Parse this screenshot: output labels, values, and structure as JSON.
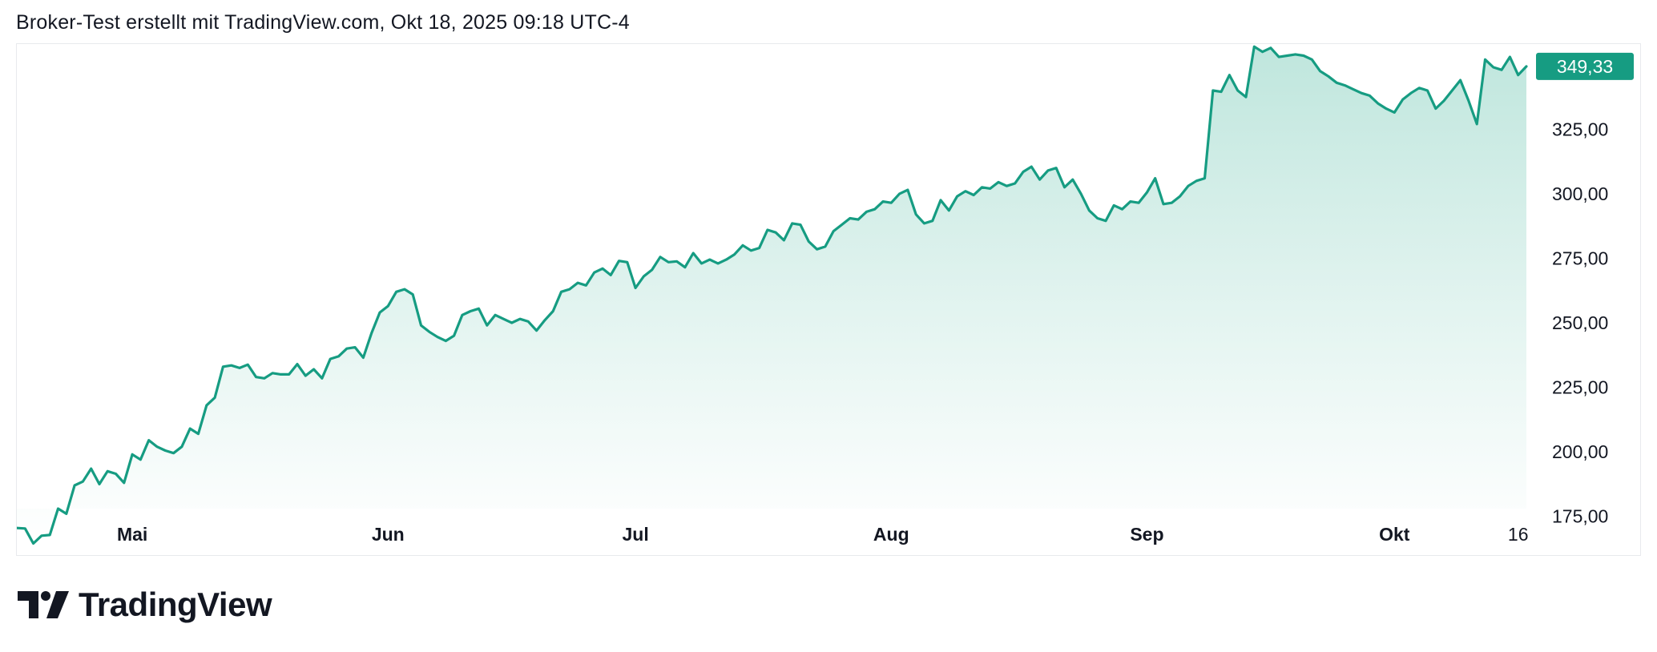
{
  "header": {
    "caption": "Broker-Test erstellt mit TradingView.com, Okt 18, 2025 09:18 UTC-4"
  },
  "brand": {
    "logo_text": "TradingView",
    "logo_icon": "tradingview-logo-icon"
  },
  "colors": {
    "line": "#169c82",
    "fill_top": "#bfe6dd",
    "fill_bottom": "#ffffff",
    "badge_bg": "#169c82",
    "badge_text": "#ffffff",
    "axis_text": "#131722"
  },
  "chart_data": {
    "type": "area",
    "x_range": [
      "2025-04-17",
      "2025-10-17"
    ],
    "ylim": [
      160,
      358
    ],
    "y_ticks": [
      {
        "value": 175,
        "label": "175,00"
      },
      {
        "value": 200,
        "label": "200,00"
      },
      {
        "value": 225,
        "label": "225,00"
      },
      {
        "value": 250,
        "label": "250,00"
      },
      {
        "value": 275,
        "label": "275,00"
      },
      {
        "value": 300,
        "label": "300,00"
      },
      {
        "value": 325,
        "label": "325,00"
      }
    ],
    "x_ticks": [
      {
        "date": "2025-05-01",
        "label": "Mai"
      },
      {
        "date": "2025-06-01",
        "label": "Jun"
      },
      {
        "date": "2025-07-01",
        "label": "Jul"
      },
      {
        "date": "2025-08-01",
        "label": "Aug"
      },
      {
        "date": "2025-09-01",
        "label": "Sep"
      },
      {
        "date": "2025-10-01",
        "label": "Okt"
      },
      {
        "date": "2025-10-16",
        "label": "16"
      }
    ],
    "last_price": {
      "value": 349.33,
      "label": "349,33"
    },
    "series": [
      {
        "points": [
          [
            "2025-04-17",
            170.5
          ],
          [
            "2025-04-18",
            170.3
          ],
          [
            "2025-04-19",
            164.5
          ],
          [
            "2025-04-20",
            167.5
          ],
          [
            "2025-04-21",
            167.8
          ],
          [
            "2025-04-22",
            178.0
          ],
          [
            "2025-04-23",
            176.0
          ],
          [
            "2025-04-24",
            187.0
          ],
          [
            "2025-04-25",
            188.5
          ],
          [
            "2025-04-26",
            193.5
          ],
          [
            "2025-04-27",
            187.5
          ],
          [
            "2025-04-28",
            192.5
          ],
          [
            "2025-04-29",
            191.5
          ],
          [
            "2025-04-30",
            188.0
          ],
          [
            "2025-05-01",
            199.0
          ],
          [
            "2025-05-02",
            197.0
          ],
          [
            "2025-05-03",
            204.5
          ],
          [
            "2025-05-04",
            202.0
          ],
          [
            "2025-05-05",
            200.5
          ],
          [
            "2025-05-06",
            199.5
          ],
          [
            "2025-05-07",
            202.0
          ],
          [
            "2025-05-08",
            209.0
          ],
          [
            "2025-05-09",
            207.0
          ],
          [
            "2025-05-10",
            218.0
          ],
          [
            "2025-05-11",
            221.0
          ],
          [
            "2025-05-12",
            233.0
          ],
          [
            "2025-05-13",
            233.5
          ],
          [
            "2025-05-14",
            232.5
          ],
          [
            "2025-05-15",
            233.8
          ],
          [
            "2025-05-16",
            229.0
          ],
          [
            "2025-05-17",
            228.5
          ],
          [
            "2025-05-18",
            230.5
          ],
          [
            "2025-05-19",
            230.0
          ],
          [
            "2025-05-20",
            230.0
          ],
          [
            "2025-05-21",
            234.0
          ],
          [
            "2025-05-22",
            229.5
          ],
          [
            "2025-05-23",
            232.0
          ],
          [
            "2025-05-24",
            228.5
          ],
          [
            "2025-05-25",
            236.0
          ],
          [
            "2025-05-26",
            237.0
          ],
          [
            "2025-05-27",
            240.0
          ],
          [
            "2025-05-28",
            240.5
          ],
          [
            "2025-05-29",
            236.5
          ],
          [
            "2025-05-30",
            246.0
          ],
          [
            "2025-05-31",
            254.0
          ],
          [
            "2025-06-01",
            256.5
          ],
          [
            "2025-06-02",
            262.0
          ],
          [
            "2025-06-03",
            263.0
          ],
          [
            "2025-06-04",
            261.0
          ],
          [
            "2025-06-05",
            249.0
          ],
          [
            "2025-06-06",
            246.5
          ],
          [
            "2025-06-07",
            244.5
          ],
          [
            "2025-06-08",
            243.0
          ],
          [
            "2025-06-09",
            245.0
          ],
          [
            "2025-06-10",
            253.0
          ],
          [
            "2025-06-11",
            254.5
          ],
          [
            "2025-06-12",
            255.5
          ],
          [
            "2025-06-13",
            249.0
          ],
          [
            "2025-06-14",
            253.0
          ],
          [
            "2025-06-15",
            251.5
          ],
          [
            "2025-06-16",
            250.0
          ],
          [
            "2025-06-17",
            251.5
          ],
          [
            "2025-06-18",
            250.5
          ],
          [
            "2025-06-19",
            247.0
          ],
          [
            "2025-06-20",
            251.0
          ],
          [
            "2025-06-21",
            254.5
          ],
          [
            "2025-06-22",
            262.0
          ],
          [
            "2025-06-23",
            263.0
          ],
          [
            "2025-06-24",
            265.5
          ],
          [
            "2025-06-25",
            264.5
          ],
          [
            "2025-06-26",
            269.5
          ],
          [
            "2025-06-27",
            271.0
          ],
          [
            "2025-06-28",
            268.5
          ],
          [
            "2025-06-29",
            274.0
          ],
          [
            "2025-06-30",
            273.5
          ],
          [
            "2025-07-01",
            263.5
          ],
          [
            "2025-07-02",
            268.0
          ],
          [
            "2025-07-03",
            270.5
          ],
          [
            "2025-07-04",
            275.5
          ],
          [
            "2025-07-05",
            273.5
          ],
          [
            "2025-07-06",
            273.8
          ],
          [
            "2025-07-07",
            271.5
          ],
          [
            "2025-07-08",
            277.0
          ],
          [
            "2025-07-09",
            273.0
          ],
          [
            "2025-07-10",
            274.5
          ],
          [
            "2025-07-11",
            273.0
          ],
          [
            "2025-07-12",
            274.5
          ],
          [
            "2025-07-13",
            276.5
          ],
          [
            "2025-07-14",
            280.0
          ],
          [
            "2025-07-15",
            278.0
          ],
          [
            "2025-07-16",
            279.0
          ],
          [
            "2025-07-17",
            286.0
          ],
          [
            "2025-07-18",
            285.0
          ],
          [
            "2025-07-19",
            282.0
          ],
          [
            "2025-07-20",
            288.5
          ],
          [
            "2025-07-21",
            288.0
          ],
          [
            "2025-07-22",
            281.5
          ],
          [
            "2025-07-23",
            278.5
          ],
          [
            "2025-07-24",
            279.5
          ],
          [
            "2025-07-25",
            285.5
          ],
          [
            "2025-07-26",
            288.0
          ],
          [
            "2025-07-27",
            290.5
          ],
          [
            "2025-07-28",
            290.0
          ],
          [
            "2025-07-29",
            293.0
          ],
          [
            "2025-07-30",
            294.0
          ],
          [
            "2025-07-31",
            297.0
          ],
          [
            "2025-08-01",
            296.5
          ],
          [
            "2025-08-02",
            300.0
          ],
          [
            "2025-08-03",
            301.5
          ],
          [
            "2025-08-04",
            292.0
          ],
          [
            "2025-08-05",
            288.5
          ],
          [
            "2025-08-06",
            289.5
          ],
          [
            "2025-08-07",
            297.5
          ],
          [
            "2025-08-08",
            293.5
          ],
          [
            "2025-08-09",
            299.0
          ],
          [
            "2025-08-10",
            301.0
          ],
          [
            "2025-08-11",
            299.5
          ],
          [
            "2025-08-12",
            302.5
          ],
          [
            "2025-08-13",
            302.0
          ],
          [
            "2025-08-14",
            304.5
          ],
          [
            "2025-08-15",
            303.0
          ],
          [
            "2025-08-16",
            304.0
          ],
          [
            "2025-08-17",
            308.5
          ],
          [
            "2025-08-18",
            310.5
          ],
          [
            "2025-08-19",
            305.5
          ],
          [
            "2025-08-20",
            309.0
          ],
          [
            "2025-08-21",
            310.0
          ],
          [
            "2025-08-22",
            302.5
          ],
          [
            "2025-08-23",
            305.5
          ],
          [
            "2025-08-24",
            300.0
          ],
          [
            "2025-08-25",
            293.5
          ],
          [
            "2025-08-26",
            290.5
          ],
          [
            "2025-08-27",
            289.5
          ],
          [
            "2025-08-28",
            295.5
          ],
          [
            "2025-08-29",
            294.0
          ],
          [
            "2025-08-30",
            297.0
          ],
          [
            "2025-08-31",
            296.5
          ],
          [
            "2025-09-01",
            300.5
          ],
          [
            "2025-09-02",
            306.0
          ],
          [
            "2025-09-03",
            296.0
          ],
          [
            "2025-09-04",
            296.5
          ],
          [
            "2025-09-05",
            299.0
          ],
          [
            "2025-09-06",
            303.0
          ],
          [
            "2025-09-07",
            305.0
          ],
          [
            "2025-09-08",
            306.0
          ],
          [
            "2025-09-09",
            340.0
          ],
          [
            "2025-09-10",
            339.5
          ],
          [
            "2025-09-11",
            346.0
          ],
          [
            "2025-09-12",
            340.0
          ],
          [
            "2025-09-13",
            337.5
          ],
          [
            "2025-09-14",
            357.0
          ],
          [
            "2025-09-15",
            355.0
          ],
          [
            "2025-09-16",
            356.5
          ],
          [
            "2025-09-17",
            353.0
          ],
          [
            "2025-09-18",
            353.5
          ],
          [
            "2025-09-19",
            354.0
          ],
          [
            "2025-09-20",
            353.5
          ],
          [
            "2025-09-21",
            352.0
          ],
          [
            "2025-09-22",
            347.5
          ],
          [
            "2025-09-23",
            345.5
          ],
          [
            "2025-09-24",
            343.0
          ],
          [
            "2025-09-25",
            342.0
          ],
          [
            "2025-09-26",
            340.5
          ],
          [
            "2025-09-27",
            339.0
          ],
          [
            "2025-09-28",
            338.0
          ],
          [
            "2025-09-29",
            335.0
          ],
          [
            "2025-09-30",
            333.0
          ],
          [
            "2025-10-01",
            331.5
          ],
          [
            "2025-10-02",
            336.5
          ],
          [
            "2025-10-03",
            339.0
          ],
          [
            "2025-10-04",
            341.0
          ],
          [
            "2025-10-05",
            340.0
          ],
          [
            "2025-10-06",
            333.0
          ],
          [
            "2025-10-07",
            336.0
          ],
          [
            "2025-10-08",
            340.0
          ],
          [
            "2025-10-09",
            344.0
          ],
          [
            "2025-10-10",
            336.0
          ],
          [
            "2025-10-11",
            327.0
          ],
          [
            "2025-10-12",
            352.0
          ],
          [
            "2025-10-13",
            349.0
          ],
          [
            "2025-10-14",
            348.0
          ],
          [
            "2025-10-15",
            353.0
          ],
          [
            "2025-10-16",
            346.0
          ],
          [
            "2025-10-17",
            349.33
          ]
        ]
      }
    ]
  }
}
